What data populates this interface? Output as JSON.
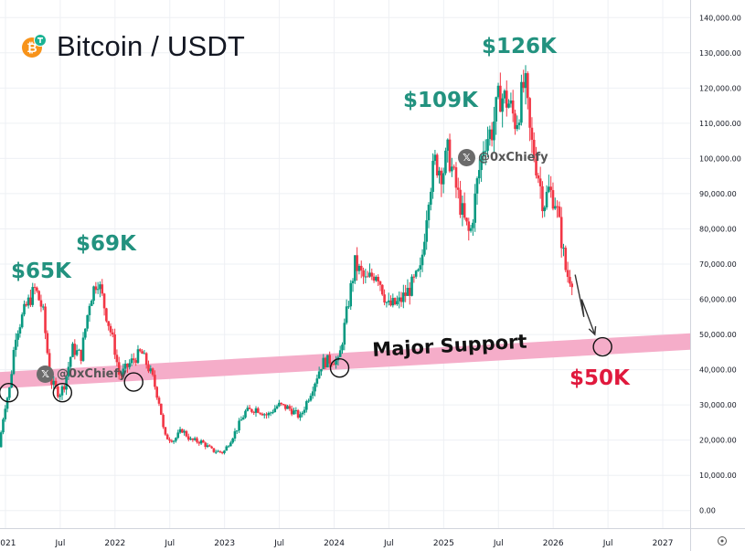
{
  "header": {
    "title": "Bitcoin / USDT",
    "coin_icon": "bitcoin-icon",
    "exchange_icon": "exchange-badge-icon",
    "coin_color": "#f7931a",
    "exchange_color": "#1ab394"
  },
  "annotations": {
    "peak_65k": "$65K",
    "peak_69k": "$69K",
    "peak_109k": "$109K",
    "peak_126k": "$126K",
    "target_50k": "$50K",
    "support_label": "Major Support",
    "watermark_1": "@0xChiefy",
    "watermark_2": "@0xChiefy",
    "watermark_icon": "x-logo-icon",
    "colors": {
      "peak": "#22927f",
      "target": "#e0193d",
      "support_band": "#f4a9c6"
    }
  },
  "chart_data": {
    "type": "candlestick",
    "title": "Bitcoin / USDT",
    "x_unit": "year (decimal)",
    "xlim": [
      2020.95,
      2027.25
    ],
    "ylim": [
      -5000,
      145000
    ],
    "y_ticks": [
      {
        "value": 0,
        "label": "0.00"
      },
      {
        "value": 10000,
        "label": "10,000.00"
      },
      {
        "value": 20000,
        "label": "20,000.00"
      },
      {
        "value": 30000,
        "label": "30,000.00"
      },
      {
        "value": 40000,
        "label": "40,000.00"
      },
      {
        "value": 50000,
        "label": "50,000.00"
      },
      {
        "value": 60000,
        "label": "60,000.00"
      },
      {
        "value": 70000,
        "label": "70,000.00"
      },
      {
        "value": 80000,
        "label": "80,000.00"
      },
      {
        "value": 90000,
        "label": "90,000.00"
      },
      {
        "value": 100000,
        "label": "100,000.00"
      },
      {
        "value": 110000,
        "label": "110,000.00"
      },
      {
        "value": 120000,
        "label": "120,000.00"
      },
      {
        "value": 130000,
        "label": "130,000.00"
      },
      {
        "value": 140000,
        "label": "140,000.00"
      }
    ],
    "x_ticks": [
      {
        "value": 2021.0,
        "label": "2021"
      },
      {
        "value": 2021.5,
        "label": "Jul"
      },
      {
        "value": 2022.0,
        "label": "2022"
      },
      {
        "value": 2022.5,
        "label": "Jul"
      },
      {
        "value": 2023.0,
        "label": "2023"
      },
      {
        "value": 2023.5,
        "label": "Jul"
      },
      {
        "value": 2024.0,
        "label": "2024"
      },
      {
        "value": 2024.5,
        "label": "Jul"
      },
      {
        "value": 2025.0,
        "label": "2025"
      },
      {
        "value": 2025.5,
        "label": "Jul"
      },
      {
        "value": 2026.0,
        "label": "2026"
      },
      {
        "value": 2026.5,
        "label": "Jul"
      },
      {
        "value": 2027.0,
        "label": "2027"
      }
    ],
    "grid": true,
    "price_path": [
      [
        2020.95,
        18000
      ],
      [
        2021.0,
        29000
      ],
      [
        2021.05,
        35000
      ],
      [
        2021.1,
        50000
      ],
      [
        2021.2,
        58000
      ],
      [
        2021.28,
        63000
      ],
      [
        2021.35,
        57000
      ],
      [
        2021.42,
        37000
      ],
      [
        2021.5,
        33000
      ],
      [
        2021.55,
        36000
      ],
      [
        2021.62,
        46000
      ],
      [
        2021.7,
        44000
      ],
      [
        2021.78,
        60000
      ],
      [
        2021.85,
        66000
      ],
      [
        2021.92,
        57000
      ],
      [
        2022.0,
        47000
      ],
      [
        2022.05,
        38000
      ],
      [
        2022.15,
        42000
      ],
      [
        2022.25,
        45000
      ],
      [
        2022.35,
        38000
      ],
      [
        2022.42,
        30000
      ],
      [
        2022.46,
        21000
      ],
      [
        2022.55,
        20000
      ],
      [
        2022.62,
        23000
      ],
      [
        2022.7,
        20000
      ],
      [
        2022.8,
        19500
      ],
      [
        2022.9,
        17000
      ],
      [
        2023.0,
        16500
      ],
      [
        2023.1,
        22000
      ],
      [
        2023.2,
        28000
      ],
      [
        2023.3,
        29000
      ],
      [
        2023.4,
        27000
      ],
      [
        2023.5,
        30000
      ],
      [
        2023.6,
        29000
      ],
      [
        2023.7,
        26500
      ],
      [
        2023.8,
        34000
      ],
      [
        2023.9,
        42000
      ],
      [
        2024.0,
        43000
      ],
      [
        2024.05,
        42000
      ],
      [
        2024.15,
        61000
      ],
      [
        2024.2,
        70000
      ],
      [
        2024.3,
        65000
      ],
      [
        2024.4,
        68000
      ],
      [
        2024.5,
        58000
      ],
      [
        2024.6,
        59000
      ],
      [
        2024.7,
        63000
      ],
      [
        2024.8,
        68000
      ],
      [
        2024.87,
        90000
      ],
      [
        2024.93,
        99000
      ],
      [
        2025.0,
        96000
      ],
      [
        2025.05,
        102000
      ],
      [
        2025.12,
        92000
      ],
      [
        2025.2,
        82000
      ],
      [
        2025.25,
        78000
      ],
      [
        2025.32,
        94000
      ],
      [
        2025.38,
        105000
      ],
      [
        2025.45,
        108000
      ],
      [
        2025.52,
        118000
      ],
      [
        2025.6,
        116000
      ],
      [
        2025.67,
        110000
      ],
      [
        2025.75,
        122000
      ],
      [
        2025.8,
        106000
      ],
      [
        2025.87,
        96000
      ],
      [
        2025.92,
        87000
      ],
      [
        2025.97,
        91000
      ],
      [
        2026.03,
        88000
      ],
      [
        2026.08,
        78000
      ],
      [
        2026.13,
        67000
      ],
      [
        2026.18,
        66000
      ]
    ],
    "projection": [
      [
        2026.2,
        67000
      ],
      [
        2026.28,
        55000
      ],
      [
        2026.26,
        60000
      ],
      [
        2026.38,
        50000
      ]
    ],
    "highlights": [
      {
        "label": "$65K",
        "x": 2021.28,
        "y": 65000
      },
      {
        "label": "$69K",
        "x": 2021.87,
        "y": 69000
      },
      {
        "label": "$109K",
        "x": 2024.96,
        "y": 109000
      },
      {
        "label": "$126K",
        "x": 2025.78,
        "y": 126000
      },
      {
        "label": "$50K",
        "x": 2026.42,
        "y": 50000
      }
    ],
    "support_band": {
      "label": "Major Support",
      "start": [
        2020.95,
        37000
      ],
      "end": [
        2027.25,
        48000
      ]
    },
    "support_touches": [
      {
        "x": 2021.03,
        "y": 33500
      },
      {
        "x": 2021.52,
        "y": 33500
      },
      {
        "x": 2022.17,
        "y": 36500
      },
      {
        "x": 2024.05,
        "y": 40500
      },
      {
        "x": 2026.45,
        "y": 46500
      }
    ]
  }
}
